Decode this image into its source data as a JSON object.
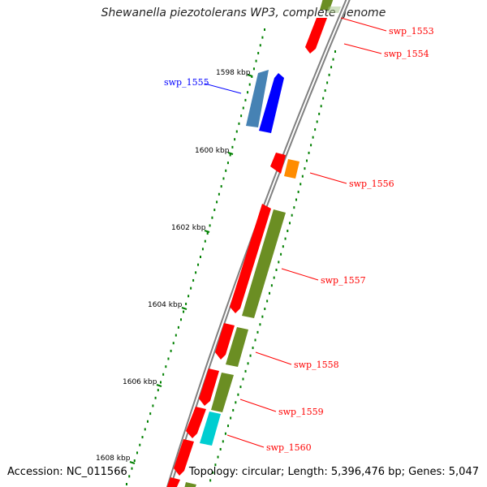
{
  "title": "Shewanella piezotolerans WP3, complete genome",
  "footer": {
    "accession": "Accession: NC_011566",
    "summary": "Topology: circular; Length: 5,396,476 bp; Genes: 5,047"
  },
  "colors": {
    "backbone": "#808080",
    "tick": "#008000",
    "label_red": "#ff0000",
    "label_blue": "#0000ff",
    "gene_red": "#ff0000",
    "gene_olive": "#6b8e23",
    "gene_steelblue": "#4682b4",
    "gene_blue": "#0000ff",
    "gene_orange": "#ff8c00",
    "gene_cyan": "#00ced1"
  },
  "kbp_ticks": [
    {
      "label": "1598 kbp"
    },
    {
      "label": "1600 kbp"
    },
    {
      "label": "1602 kbp"
    },
    {
      "label": "1604 kbp"
    },
    {
      "label": "1606 kbp"
    },
    {
      "label": "1608 kbp"
    }
  ],
  "gene_labels": [
    {
      "name": "swp_1553",
      "color": "label_red"
    },
    {
      "name": "swp_1554",
      "color": "label_red"
    },
    {
      "name": "swp_1555",
      "color": "label_blue"
    },
    {
      "name": "swp_1556",
      "color": "label_red"
    },
    {
      "name": "swp_1557",
      "color": "label_red"
    },
    {
      "name": "swp_1558",
      "color": "label_red"
    },
    {
      "name": "swp_1559",
      "color": "label_red"
    },
    {
      "name": "swp_1560",
      "color": "label_red"
    }
  ]
}
